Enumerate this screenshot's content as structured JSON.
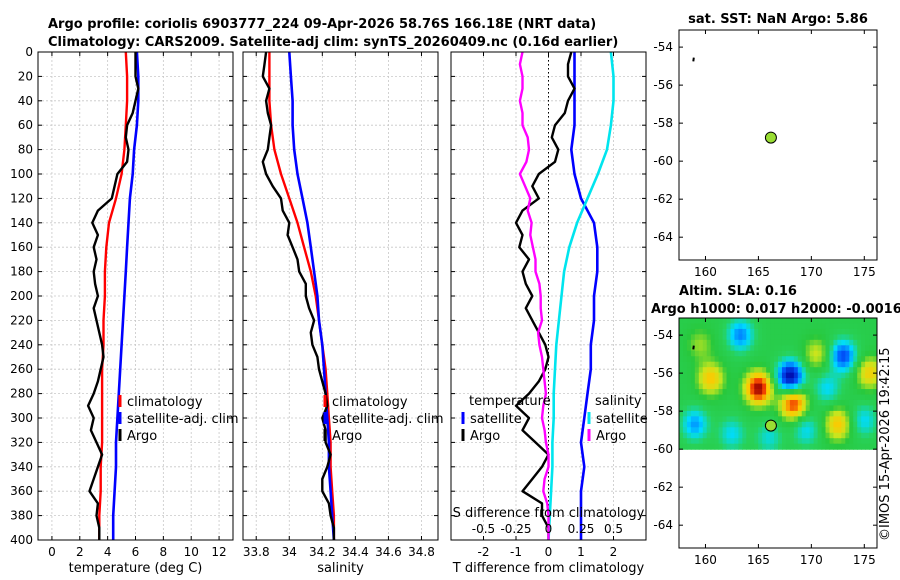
{
  "header": {
    "title_line1": "Argo profile: coriolis 6903777_224 09-Apr-2026 58.76S 166.18E (NRT data)",
    "title_line2": "Climatology: CARS2009. Satellite-adj clim: synTS_20260409.nc (0.16d earlier)"
  },
  "map_top": {
    "title": "sat. SST: NaN Argo: 5.86"
  },
  "map_bottom": {
    "title1": "Altim. SLA: 0.16",
    "title2": "Argo h1000: 0.017 h2000: -0.0016"
  },
  "credit": "©IMOS 15-Apr-2026 19:42:15",
  "colors": {
    "climatology": "#ff0000",
    "satellite": "#0000ff",
    "argo": "#000000",
    "magenta": "#ff00ff",
    "cyan": "#00e5ee"
  },
  "chart_data": [
    {
      "type": "line",
      "name": "temperature-panel",
      "xlabel": "temperature (deg C)",
      "ylabel": "",
      "xlim": [
        -1,
        13
      ],
      "ylim": [
        400,
        0
      ],
      "xticks": [
        "0",
        "2",
        "4",
        "6",
        "8",
        "10",
        "12"
      ],
      "xtick_vals": [
        0,
        2,
        4,
        6,
        8,
        10,
        12
      ],
      "yticks": [
        "0",
        "20",
        "40",
        "60",
        "80",
        "100",
        "120",
        "140",
        "160",
        "180",
        "200",
        "220",
        "240",
        "260",
        "280",
        "300",
        "320",
        "340",
        "360",
        "380",
        "400"
      ],
      "legend": [
        "climatology",
        "satellite-adj. clim",
        "Argo"
      ],
      "series": [
        {
          "name": "climatology",
          "color": "climatology",
          "depth": [
            0,
            20,
            40,
            60,
            80,
            100,
            120,
            140,
            160,
            180,
            200,
            220,
            240,
            260,
            280,
            300,
            320,
            340,
            360,
            380,
            400
          ],
          "values": [
            5.3,
            5.4,
            5.4,
            5.3,
            5.2,
            5.0,
            4.6,
            4.1,
            3.9,
            3.8,
            3.8,
            3.7,
            3.7,
            3.6,
            3.6,
            3.6,
            3.6,
            3.5,
            3.5,
            3.4,
            3.4
          ]
        },
        {
          "name": "satellite-adj. clim",
          "color": "satellite",
          "depth": [
            0,
            20,
            40,
            60,
            80,
            100,
            120,
            140,
            160,
            180,
            200,
            220,
            240,
            260,
            280,
            300,
            320,
            340,
            360,
            380,
            400
          ],
          "values": [
            6.1,
            6.2,
            6.2,
            6.1,
            5.9,
            5.8,
            5.6,
            5.5,
            5.4,
            5.3,
            5.2,
            5.1,
            5.0,
            4.9,
            4.8,
            4.7,
            4.6,
            4.6,
            4.5,
            4.4,
            4.4
          ]
        },
        {
          "name": "Argo",
          "color": "argo",
          "depth": [
            0,
            10,
            20,
            30,
            40,
            50,
            60,
            70,
            80,
            90,
            100,
            110,
            120,
            130,
            140,
            150,
            160,
            170,
            180,
            190,
            200,
            210,
            220,
            230,
            240,
            250,
            260,
            270,
            280,
            290,
            300,
            310,
            320,
            330,
            340,
            350,
            360,
            370,
            380,
            390,
            400
          ],
          "values": [
            6.0,
            6.0,
            6.0,
            6.2,
            6.0,
            5.8,
            5.4,
            5.3,
            5.5,
            5.4,
            4.7,
            4.5,
            4.3,
            3.3,
            2.9,
            3.3,
            3.0,
            3.2,
            3.0,
            3.1,
            3.3,
            3.0,
            3.2,
            3.4,
            3.6,
            3.7,
            3.5,
            3.3,
            3.0,
            2.6,
            3.0,
            2.8,
            3.2,
            3.6,
            3.3,
            3.0,
            2.7,
            3.3,
            3.2,
            3.4,
            3.4
          ]
        }
      ]
    },
    {
      "type": "line",
      "name": "salinity-panel",
      "xlabel": "salinity",
      "ylabel": "",
      "xlim": [
        33.72,
        34.9
      ],
      "ylim": [
        400,
        0
      ],
      "xticks": [
        "33.8",
        "34",
        "34.2",
        "34.4",
        "34.6",
        "34.8"
      ],
      "xtick_vals": [
        33.8,
        34.0,
        34.2,
        34.4,
        34.6,
        34.8
      ],
      "legend": [
        "climatology",
        "satellite-adj. clim",
        "Argo"
      ],
      "series": [
        {
          "name": "climatology",
          "color": "climatology",
          "depth": [
            0,
            20,
            40,
            60,
            80,
            100,
            120,
            140,
            160,
            180,
            200,
            220,
            240,
            260,
            280,
            300,
            320,
            340,
            360,
            380,
            400
          ],
          "values": [
            33.88,
            33.88,
            33.88,
            33.89,
            33.91,
            33.95,
            34.0,
            34.05,
            34.09,
            34.13,
            34.16,
            34.18,
            34.2,
            34.22,
            34.23,
            34.24,
            34.25,
            34.25,
            34.26,
            34.27,
            34.27
          ]
        },
        {
          "name": "satellite-adj. clim",
          "color": "satellite",
          "depth": [
            0,
            20,
            40,
            60,
            80,
            100,
            120,
            140,
            160,
            180,
            200,
            220,
            240,
            260,
            280,
            300,
            320,
            340,
            360,
            380,
            400
          ],
          "values": [
            34.0,
            34.01,
            34.02,
            34.02,
            34.03,
            34.05,
            34.08,
            34.11,
            34.13,
            34.15,
            34.17,
            34.18,
            34.2,
            34.21,
            34.22,
            34.23,
            34.24,
            34.24,
            34.25,
            34.26,
            34.27
          ]
        },
        {
          "name": "Argo",
          "color": "argo",
          "depth": [
            0,
            10,
            20,
            30,
            40,
            50,
            60,
            70,
            80,
            90,
            100,
            110,
            120,
            130,
            140,
            150,
            160,
            170,
            180,
            190,
            200,
            210,
            220,
            230,
            240,
            250,
            260,
            270,
            280,
            290,
            300,
            310,
            320,
            330,
            340,
            350,
            360,
            370,
            380,
            390,
            400
          ],
          "values": [
            33.86,
            33.85,
            33.84,
            33.88,
            33.86,
            33.87,
            33.89,
            33.88,
            33.87,
            33.84,
            33.86,
            33.9,
            33.95,
            33.96,
            34.0,
            33.99,
            34.02,
            34.05,
            34.06,
            34.1,
            34.1,
            34.12,
            34.15,
            34.13,
            34.14,
            34.17,
            34.18,
            34.2,
            34.22,
            34.23,
            34.2,
            34.22,
            34.22,
            34.25,
            34.23,
            34.2,
            34.2,
            34.24,
            34.25,
            34.27,
            34.27
          ]
        }
      ]
    },
    {
      "type": "line",
      "name": "difference-panel",
      "xlabel": "T difference from climatology",
      "xlabel_top": "S difference from climatology",
      "xlim": [
        -3,
        3
      ],
      "ylim": [
        400,
        0
      ],
      "xticks": [
        "-2",
        "-1",
        "0",
        "1",
        "2"
      ],
      "xtick_vals": [
        -2,
        -1,
        0,
        1,
        2
      ],
      "xticks_top": [
        "-0.5",
        "-0.25",
        "0",
        "0.25",
        "0.5"
      ],
      "legend_left_title": "temperature",
      "legend_right_title": "salinity",
      "legend_left": [
        "satellite",
        "Argo"
      ],
      "legend_right": [
        "satellite",
        "Argo"
      ],
      "series": [
        {
          "name": "T satellite",
          "color": "satellite",
          "depth": [
            0,
            20,
            40,
            60,
            80,
            100,
            120,
            140,
            160,
            180,
            200,
            220,
            240,
            260,
            280,
            300,
            320,
            340,
            360,
            380,
            400
          ],
          "values": [
            0.8,
            0.8,
            0.8,
            0.8,
            0.7,
            0.8,
            1.0,
            1.4,
            1.5,
            1.5,
            1.4,
            1.4,
            1.3,
            1.3,
            1.2,
            1.1,
            1.0,
            1.1,
            1.0,
            1.0,
            1.0
          ]
        },
        {
          "name": "T Argo",
          "color": "argo",
          "depth": [
            0,
            10,
            20,
            30,
            40,
            50,
            60,
            70,
            80,
            90,
            100,
            110,
            120,
            130,
            140,
            150,
            160,
            170,
            180,
            190,
            200,
            210,
            220,
            230,
            240,
            250,
            260,
            270,
            280,
            290,
            300,
            310,
            320,
            330,
            340,
            350,
            360,
            370,
            380,
            390,
            400
          ],
          "values": [
            0.7,
            0.6,
            0.6,
            0.8,
            0.6,
            0.5,
            0.2,
            0.1,
            0.3,
            0.2,
            -0.3,
            -0.5,
            -0.3,
            -0.8,
            -1.0,
            -0.8,
            -0.9,
            -0.6,
            -0.8,
            -0.7,
            -0.5,
            -0.7,
            -0.5,
            -0.3,
            -0.1,
            0.0,
            -0.1,
            -0.3,
            -0.6,
            -1.0,
            -0.6,
            -0.8,
            -0.4,
            0.0,
            -0.2,
            -0.5,
            -0.8,
            -0.2,
            -0.2,
            0.0,
            0.0
          ]
        },
        {
          "name": "S satellite",
          "color": "cyan",
          "depth": [
            0,
            20,
            40,
            60,
            80,
            100,
            120,
            140,
            160,
            180,
            200,
            220,
            240,
            260,
            280,
            300,
            320,
            340,
            360,
            380,
            400
          ],
          "values": [
            0.48,
            0.5,
            0.5,
            0.48,
            0.45,
            0.38,
            0.3,
            0.22,
            0.16,
            0.12,
            0.1,
            0.08,
            0.06,
            0.05,
            0.04,
            0.04,
            0.03,
            0.03,
            0.02,
            0.01,
            0.0
          ]
        },
        {
          "name": "S Argo",
          "color": "magenta",
          "depth": [
            0,
            10,
            20,
            30,
            40,
            50,
            60,
            70,
            80,
            90,
            100,
            110,
            120,
            130,
            140,
            150,
            160,
            170,
            180,
            190,
            200,
            210,
            220,
            230,
            240,
            250,
            260,
            270,
            280,
            290,
            300,
            310,
            320,
            330,
            340,
            350,
            360,
            370,
            380,
            390,
            400
          ],
          "values": [
            -0.2,
            -0.22,
            -0.2,
            -0.2,
            -0.22,
            -0.2,
            -0.2,
            -0.16,
            -0.15,
            -0.17,
            -0.22,
            -0.18,
            -0.14,
            -0.16,
            -0.13,
            -0.14,
            -0.12,
            -0.1,
            -0.1,
            -0.07,
            -0.06,
            -0.06,
            -0.05,
            -0.08,
            -0.07,
            -0.05,
            -0.04,
            -0.03,
            -0.02,
            -0.04,
            -0.05,
            -0.03,
            -0.02,
            0.0,
            0.0,
            -0.03,
            -0.04,
            -0.01,
            0.0,
            0.0,
            0.0
          ]
        }
      ]
    },
    {
      "type": "scatter",
      "name": "map-sst",
      "title": "sat. SST: NaN Argo: 5.86",
      "xlim": [
        157.5,
        176.2
      ],
      "ylim": [
        -65.2,
        -53.1
      ],
      "xticks": [
        "160",
        "165",
        "170",
        "175"
      ],
      "xtick_vals": [
        160,
        165,
        170,
        175
      ],
      "yticks": [
        "-54",
        "-56",
        "-58",
        "-60",
        "-62",
        "-64"
      ],
      "ytick_vals": [
        -54,
        -56,
        -58,
        -60,
        -62,
        -64
      ],
      "track": [
        [
          158.85,
          -54.75
        ],
        [
          158.9,
          -54.55
        ]
      ],
      "marker": {
        "lon": 166.18,
        "lat": -58.76,
        "color": "#99dd33"
      }
    },
    {
      "type": "heatmap",
      "name": "map-sla",
      "title": "Altim. SLA: 0.16",
      "subtitle": "Argo h1000: 0.017 h2000: -0.0016",
      "xlim": [
        157.5,
        176.2
      ],
      "ylim": [
        -65.2,
        -53.1
      ],
      "xticks": [
        "160",
        "165",
        "170",
        "175"
      ],
      "xtick_vals": [
        160,
        165,
        170,
        175
      ],
      "yticks": [
        "-54",
        "-56",
        "-58",
        "-60",
        "-62",
        "-64"
      ],
      "ytick_vals": [
        -54,
        -56,
        -58,
        -60,
        -62,
        -64
      ],
      "data_lat_range": [
        -60.0,
        -53.1
      ],
      "anomalies": [
        {
          "lon": 168.0,
          "lat": -56.2,
          "value": -1.0
        },
        {
          "lon": 173.0,
          "lat": -55.1,
          "value": -0.7
        },
        {
          "lon": 163.3,
          "lat": -54.0,
          "value": -0.55
        },
        {
          "lon": 165.0,
          "lat": -56.8,
          "value": 1.0
        },
        {
          "lon": 168.3,
          "lat": -57.6,
          "value": 0.85
        },
        {
          "lon": 160.5,
          "lat": -56.3,
          "value": 0.55
        },
        {
          "lon": 172.5,
          "lat": -58.7,
          "value": 0.55
        },
        {
          "lon": 175.5,
          "lat": -56.0,
          "value": 0.5
        },
        {
          "lon": 170.5,
          "lat": -55.0,
          "value": 0.35
        },
        {
          "lon": 159.0,
          "lat": -58.7,
          "value": -0.5
        },
        {
          "lon": 162.5,
          "lat": -59.2,
          "value": -0.35
        },
        {
          "lon": 166.0,
          "lat": -59.4,
          "value": -0.3
        },
        {
          "lon": 169.5,
          "lat": -59.0,
          "value": -0.35
        },
        {
          "lon": 171.5,
          "lat": -56.8,
          "value": -0.35
        },
        {
          "lon": 175.0,
          "lat": -58.5,
          "value": -0.35
        },
        {
          "lon": 159.5,
          "lat": -54.5,
          "value": 0.25
        }
      ],
      "track": [
        [
          158.85,
          -54.75
        ],
        [
          158.9,
          -54.55
        ]
      ],
      "marker": {
        "lon": 166.18,
        "lat": -58.76,
        "color": "#99dd33"
      }
    }
  ]
}
